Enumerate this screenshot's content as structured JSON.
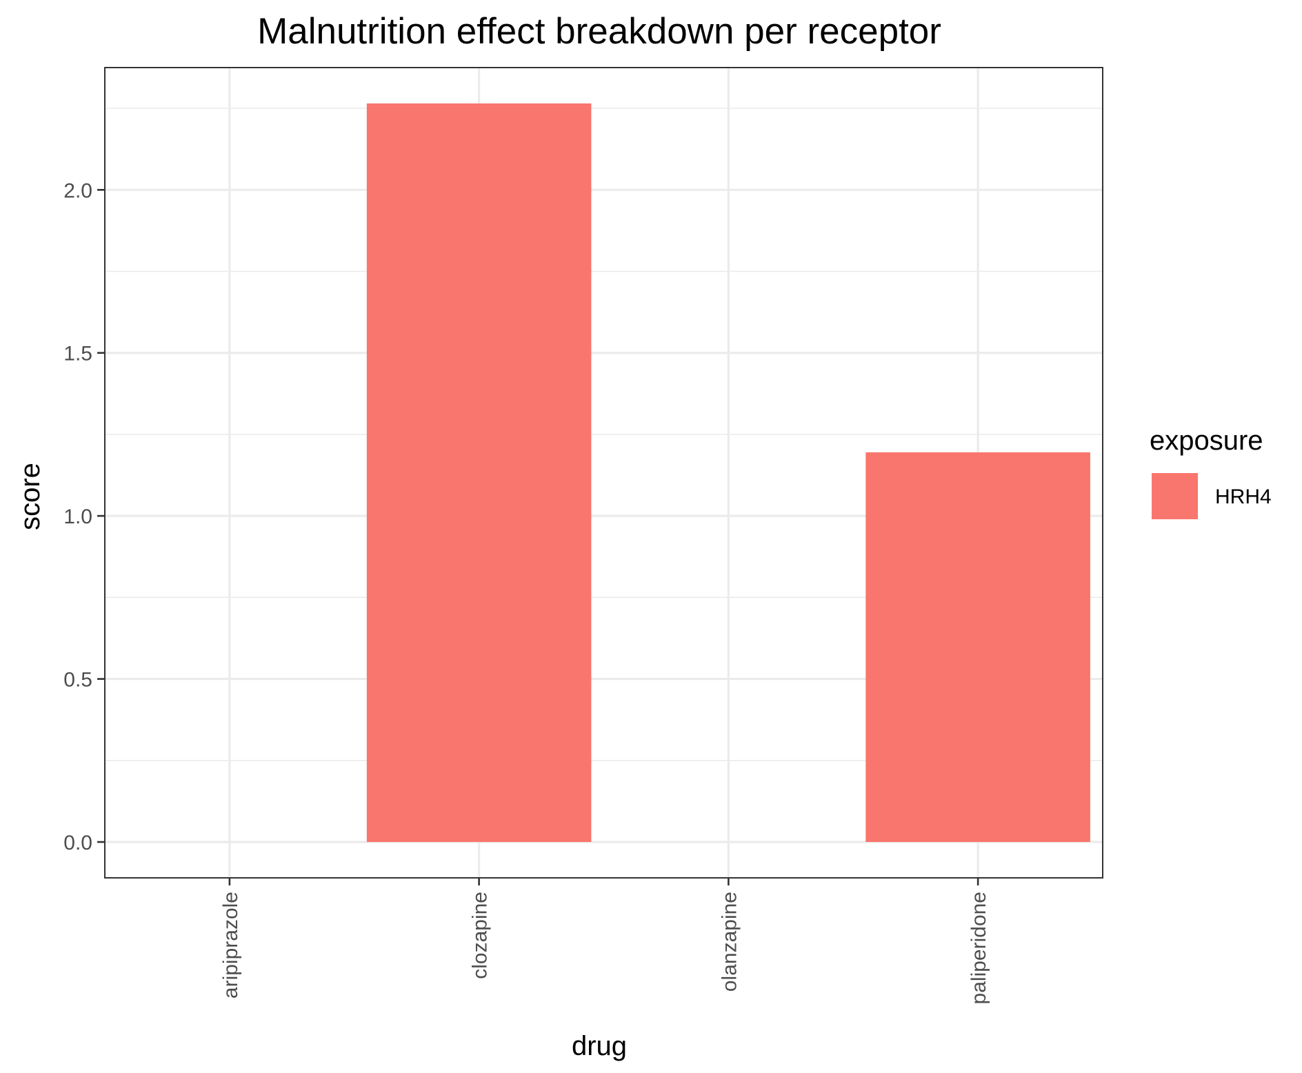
{
  "chart_data": {
    "type": "bar",
    "title": "Malnutrition effect breakdown per receptor",
    "xlabel": "drug",
    "ylabel": "score",
    "categories": [
      "aripiprazole",
      "clozapine",
      "olanzapine",
      "paliperidone"
    ],
    "series": [
      {
        "name": "HRH4",
        "values": [
          0,
          2.265,
          0,
          1.195
        ],
        "color": "#F8766D"
      }
    ],
    "ylim": [
      -0.11,
      2.375
    ],
    "yticks": [
      0.0,
      0.5,
      1.0,
      1.5,
      2.0
    ],
    "ytick_labels": [
      "0.0",
      "0.5",
      "1.0",
      "1.5",
      "2.0"
    ],
    "grid": true,
    "legend": {
      "title": "exposure",
      "placement": "right"
    }
  }
}
